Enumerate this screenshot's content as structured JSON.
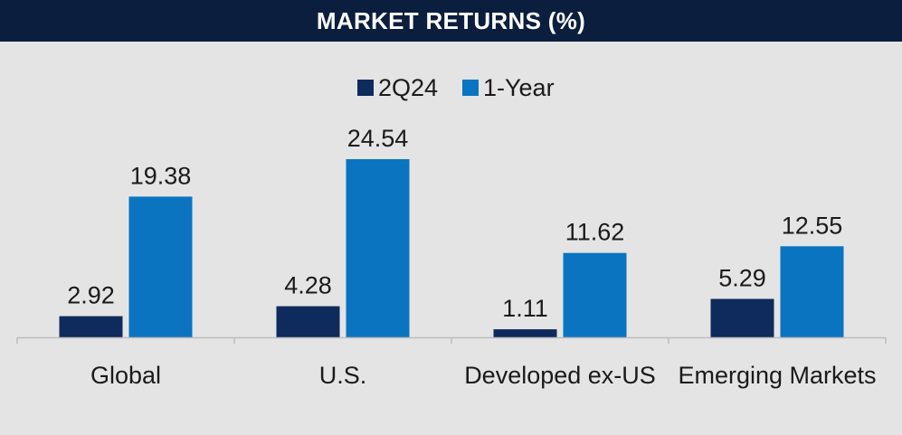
{
  "chart_data": {
    "type": "bar",
    "title": "MARKET RETURNS (%)",
    "categories": [
      "Global",
      "U.S.",
      "Developed ex-US",
      "Emerging Markets"
    ],
    "series": [
      {
        "name": "2Q24",
        "values": [
          2.92,
          4.28,
          1.11,
          5.29
        ],
        "color": "#0f2a5c"
      },
      {
        "name": "1-Year",
        "values": [
          19.38,
          24.54,
          11.62,
          12.55
        ],
        "color": "#0a74c1"
      }
    ],
    "value_labels": {
      "2Q24": [
        "2.92",
        "4.28",
        "1.11",
        "5.29"
      ],
      "1-Year": [
        "19.38",
        "24.54",
        "11.62",
        "12.55"
      ]
    },
    "ylim": [
      0,
      27
    ],
    "legend_position": "top-center",
    "grid": false,
    "background": "#e4e4e4",
    "header_color": "#0c1e3e"
  }
}
